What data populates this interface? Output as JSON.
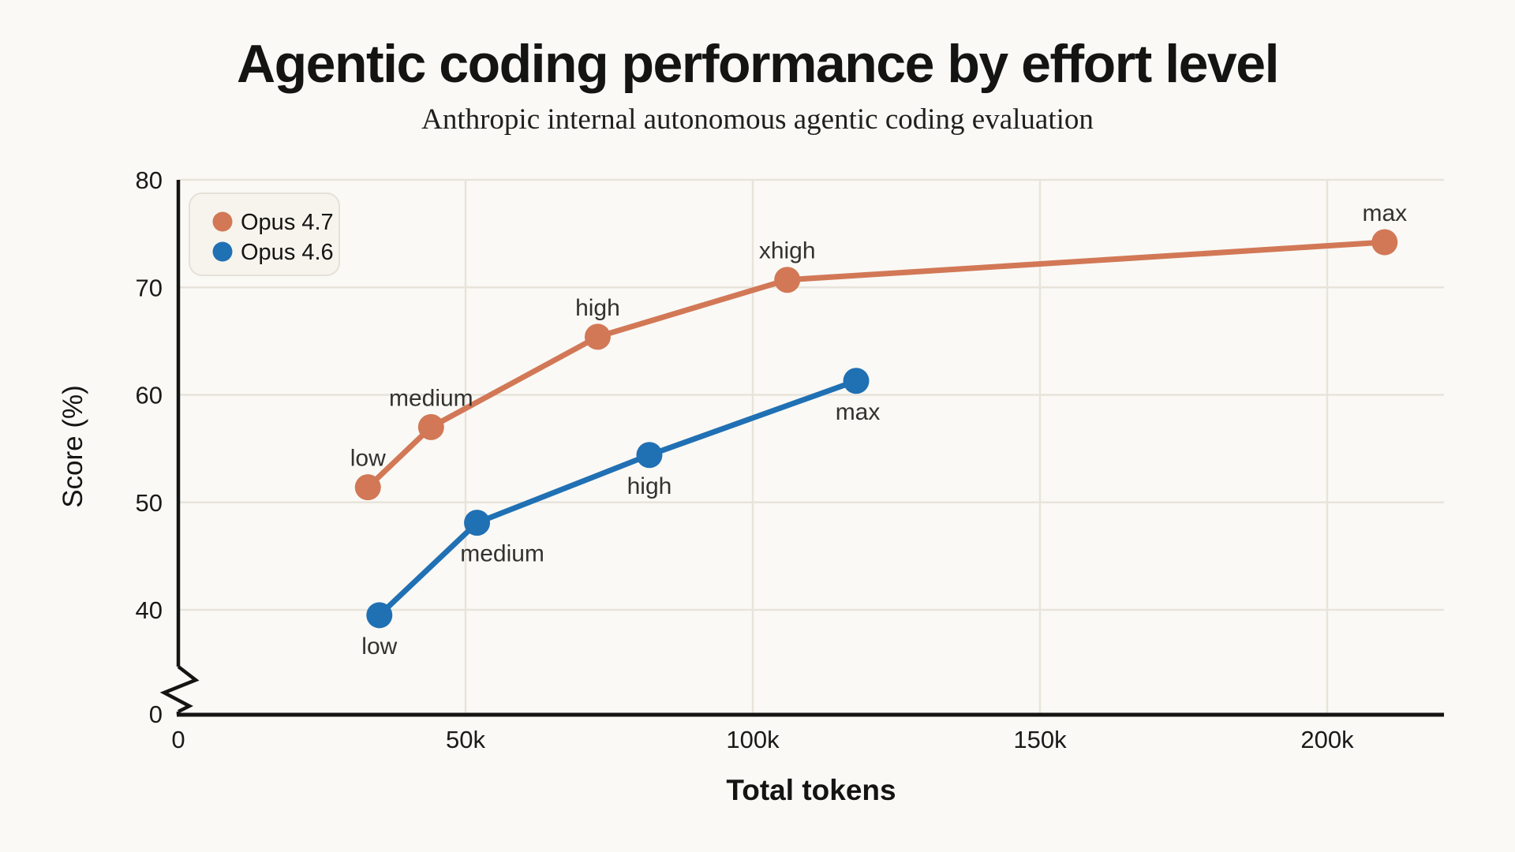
{
  "page": {
    "title": "Agentic coding performance by effort level",
    "subtitle": "Anthropic internal autonomous agentic coding evaluation"
  },
  "colors": {
    "background": "#faf9f5",
    "axis": "#141413",
    "grid": "#e8e4db",
    "tick_text": "#1a1a18",
    "point_label_text": "#33322f",
    "legend_fill": "#f6f4ed",
    "legend_border": "#e5e1d7"
  },
  "chart_data": {
    "type": "line",
    "title": "Agentic coding performance by effort level",
    "subtitle": "Anthropic internal autonomous agentic coding evaluation",
    "xlabel": "Total tokens",
    "ylabel": "Score (%)",
    "grid": true,
    "legend_position": "top-left",
    "x_axis": {
      "min": 0,
      "max": 220000,
      "ticks": [
        {
          "value": 0,
          "label": "0"
        },
        {
          "value": 50000,
          "label": "50k"
        },
        {
          "value": 100000,
          "label": "100k"
        },
        {
          "value": 150000,
          "label": "150k"
        },
        {
          "value": 200000,
          "label": "200k"
        }
      ]
    },
    "y_axis": {
      "broken": true,
      "origin_label": "0",
      "segment_min": 40,
      "segment_max": 80,
      "ticks": [
        {
          "value": 40,
          "label": "40"
        },
        {
          "value": 50,
          "label": "50"
        },
        {
          "value": 60,
          "label": "60"
        },
        {
          "value": 70,
          "label": "70"
        },
        {
          "value": 80,
          "label": "80"
        }
      ]
    },
    "series": [
      {
        "name": "Opus 4.7",
        "color": "#d27856",
        "points": [
          {
            "x": 33000,
            "y": 51.4,
            "label": "low",
            "label_position": "above",
            "label_dx": 0
          },
          {
            "x": 44000,
            "y": 57.0,
            "label": "medium",
            "label_position": "above",
            "label_dx": 0
          },
          {
            "x": 73000,
            "y": 65.4,
            "label": "high",
            "label_position": "above",
            "label_dx": 0
          },
          {
            "x": 106000,
            "y": 70.7,
            "label": "xhigh",
            "label_position": "above",
            "label_dx": 0
          },
          {
            "x": 210000,
            "y": 74.2,
            "label": "max",
            "label_position": "above",
            "label_dx": 0
          }
        ]
      },
      {
        "name": "Opus 4.6",
        "color": "#2070b4",
        "points": [
          {
            "x": 35000,
            "y": 39.5,
            "label": "low",
            "label_position": "below",
            "label_dx": 0
          },
          {
            "x": 52000,
            "y": 48.1,
            "label": "medium",
            "label_position": "below",
            "label_dx": 32
          },
          {
            "x": 82000,
            "y": 54.4,
            "label": "high",
            "label_position": "below",
            "label_dx": 0
          },
          {
            "x": 118000,
            "y": 61.3,
            "label": "max",
            "label_position": "below",
            "label_dx": 2
          }
        ]
      }
    ]
  }
}
